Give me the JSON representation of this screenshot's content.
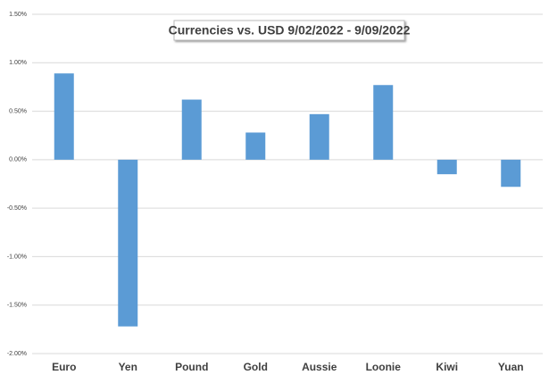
{
  "chart_data": {
    "type": "bar",
    "title": "Currencies vs. USD 9/02/2022 - 9/09/2022",
    "categories": [
      "Euro",
      "Yen",
      "Pound",
      "Gold",
      "Aussie",
      "Loonie",
      "Kiwi",
      "Yuan"
    ],
    "values": [
      0.89,
      -1.72,
      0.62,
      0.28,
      0.47,
      0.77,
      -0.15,
      -0.28
    ],
    "color": "#5b9bd5",
    "ylim": [
      -2,
      1.5
    ],
    "yticks": [
      {
        "value": 1.5,
        "label": "1.50%"
      },
      {
        "value": 1,
        "label": "1.00%"
      },
      {
        "value": 0.5,
        "label": "0.50%"
      },
      {
        "value": 0,
        "label": "0.00%"
      },
      {
        "value": -0.5,
        "label": "-0.50%"
      },
      {
        "value": -1,
        "label": "-1.00%"
      },
      {
        "value": -1.5,
        "label": "-1.50%"
      },
      {
        "value": -2,
        "label": "-2.00%"
      }
    ],
    "grid": true
  }
}
